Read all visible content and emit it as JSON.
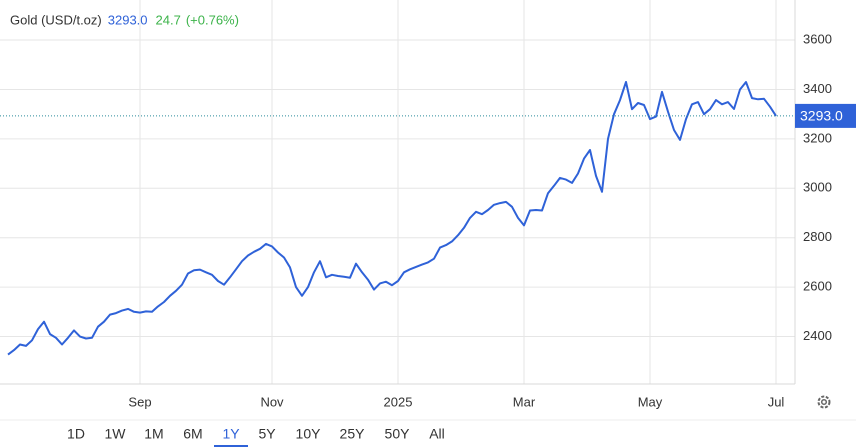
{
  "header": {
    "title": "Gold (USD/t.oz)",
    "price": "3293.0",
    "change": "24.7",
    "change_pct": "(+0.76%)"
  },
  "ranges": [
    "1D",
    "1W",
    "1M",
    "6M",
    "1Y",
    "5Y",
    "10Y",
    "25Y",
    "50Y",
    "All"
  ],
  "selected_range": "1Y",
  "chart_data": {
    "type": "line",
    "color": "#2f62d8",
    "grid": true,
    "ylim": [
      2208,
      3762
    ],
    "yticks": [
      2400,
      2600,
      2800,
      3000,
      3200,
      3400,
      3600
    ],
    "categories": [
      null,
      null,
      null,
      null,
      null,
      null,
      null,
      null,
      null,
      null,
      null,
      null,
      null,
      null,
      null,
      null,
      null,
      null,
      null,
      null,
      null,
      null,
      "Sep",
      null,
      null,
      null,
      null,
      null,
      null,
      null,
      null,
      null,
      null,
      null,
      null,
      null,
      null,
      null,
      null,
      null,
      null,
      null,
      null,
      null,
      "Nov",
      null,
      null,
      null,
      null,
      null,
      null,
      null,
      null,
      null,
      null,
      null,
      null,
      null,
      null,
      null,
      null,
      null,
      null,
      null,
      null,
      "2025",
      null,
      null,
      null,
      null,
      null,
      null,
      null,
      null,
      null,
      null,
      null,
      null,
      null,
      null,
      null,
      null,
      null,
      null,
      null,
      null,
      "Mar",
      null,
      null,
      null,
      null,
      null,
      null,
      null,
      null,
      null,
      null,
      null,
      null,
      null,
      null,
      null,
      null,
      null,
      null,
      null,
      null,
      "May",
      null,
      null,
      null,
      null,
      null,
      null,
      null,
      null,
      null,
      null,
      null,
      null,
      null,
      null,
      null,
      null,
      null,
      null,
      null,
      null,
      "Jul"
    ],
    "values": [
      2327,
      2345,
      2368,
      2362,
      2385,
      2430,
      2460,
      2410,
      2395,
      2368,
      2395,
      2425,
      2400,
      2392,
      2395,
      2440,
      2460,
      2489,
      2495,
      2505,
      2512,
      2500,
      2497,
      2502,
      2500,
      2522,
      2540,
      2565,
      2585,
      2610,
      2655,
      2668,
      2671,
      2660,
      2650,
      2625,
      2610,
      2640,
      2672,
      2705,
      2728,
      2743,
      2755,
      2775,
      2765,
      2740,
      2720,
      2680,
      2600,
      2565,
      2600,
      2660,
      2705,
      2640,
      2650,
      2645,
      2642,
      2638,
      2695,
      2660,
      2630,
      2590,
      2615,
      2622,
      2608,
      2625,
      2660,
      2672,
      2682,
      2691,
      2700,
      2715,
      2760,
      2770,
      2785,
      2810,
      2840,
      2880,
      2905,
      2895,
      2912,
      2933,
      2940,
      2945,
      2925,
      2880,
      2850,
      2910,
      2912,
      2910,
      2980,
      3010,
      3042,
      3035,
      3022,
      3060,
      3120,
      3155,
      3050,
      2986,
      3200,
      3300,
      3357,
      3430,
      3320,
      3345,
      3337,
      3280,
      3290,
      3390,
      3310,
      3236,
      3196,
      3280,
      3340,
      3349,
      3300,
      3320,
      3357,
      3340,
      3349,
      3321,
      3400,
      3430,
      3365,
      3360,
      3362,
      3330,
      3293
    ]
  }
}
